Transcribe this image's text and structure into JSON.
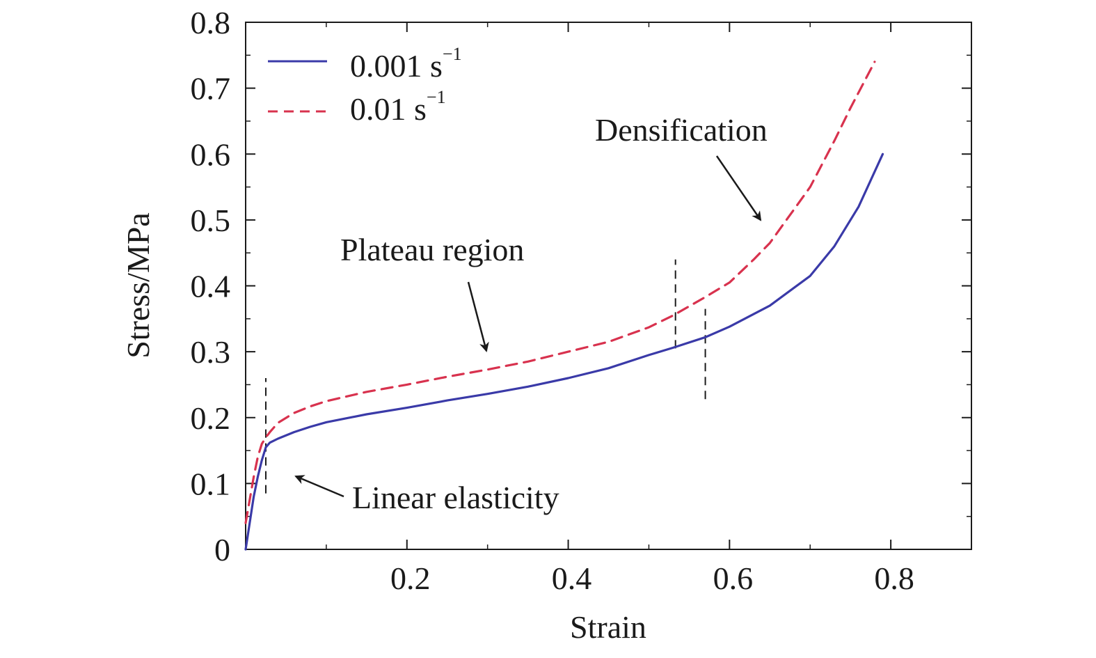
{
  "chart_data": {
    "type": "line",
    "xlabel": "Strain",
    "ylabel": "Stress/MPa",
    "xlim": [
      0,
      0.9
    ],
    "ylim": [
      0,
      0.8
    ],
    "x_ticks": [
      "0.2",
      "0.4",
      "0.6",
      "0.8"
    ],
    "x_tick_values": [
      0.2,
      0.4,
      0.6,
      0.8
    ],
    "y_ticks": [
      "0",
      "0.1",
      "0.2",
      "0.3",
      "0.4",
      "0.5",
      "0.6",
      "0.7",
      "0.8"
    ],
    "y_tick_values": [
      0,
      0.1,
      0.2,
      0.3,
      0.4,
      0.5,
      0.6,
      0.7,
      0.8
    ],
    "grid": false,
    "legend_position": "top-left",
    "series": [
      {
        "name": "0.001 s",
        "name_superscript": "−1",
        "color": "#3a3aa8",
        "style": "solid",
        "x": [
          0,
          0.005,
          0.01,
          0.015,
          0.02,
          0.025,
          0.03,
          0.04,
          0.06,
          0.08,
          0.1,
          0.15,
          0.2,
          0.25,
          0.3,
          0.35,
          0.4,
          0.45,
          0.5,
          0.53,
          0.57,
          0.6,
          0.65,
          0.7,
          0.73,
          0.76,
          0.79
        ],
        "y": [
          0,
          0.04,
          0.08,
          0.11,
          0.135,
          0.155,
          0.162,
          0.168,
          0.178,
          0.186,
          0.193,
          0.205,
          0.215,
          0.226,
          0.236,
          0.247,
          0.26,
          0.275,
          0.295,
          0.306,
          0.322,
          0.338,
          0.37,
          0.415,
          0.46,
          0.52,
          0.6
        ]
      },
      {
        "name": "0.01 s",
        "name_superscript": "−1",
        "color": "#d8324e",
        "style": "dashed",
        "x": [
          0,
          0.005,
          0.01,
          0.015,
          0.02,
          0.025,
          0.03,
          0.04,
          0.06,
          0.08,
          0.1,
          0.15,
          0.2,
          0.25,
          0.3,
          0.35,
          0.4,
          0.45,
          0.5,
          0.53,
          0.57,
          0.6,
          0.63,
          0.65,
          0.7,
          0.73,
          0.75,
          0.78
        ],
        "y": [
          0.04,
          0.075,
          0.11,
          0.14,
          0.16,
          0.17,
          0.178,
          0.192,
          0.207,
          0.217,
          0.225,
          0.239,
          0.25,
          0.262,
          0.273,
          0.285,
          0.3,
          0.315,
          0.337,
          0.355,
          0.383,
          0.405,
          0.44,
          0.465,
          0.55,
          0.62,
          0.67,
          0.74
        ]
      }
    ],
    "vlines": [
      {
        "x": 0.025,
        "y_range": [
          0.085,
          0.26
        ]
      },
      {
        "x": 0.533,
        "y_range": [
          0.305,
          0.44
        ]
      },
      {
        "x": 0.57,
        "y_range": [
          0.228,
          0.365
        ]
      }
    ],
    "annotations": [
      {
        "text": "Densification",
        "arrow_to": [
          0.638,
          0.497
        ]
      },
      {
        "text": "Plateau region",
        "arrow_to": [
          0.3,
          0.3
        ]
      },
      {
        "text": "Linear elasticity",
        "arrow_to": [
          0.06,
          0.112
        ]
      }
    ]
  }
}
